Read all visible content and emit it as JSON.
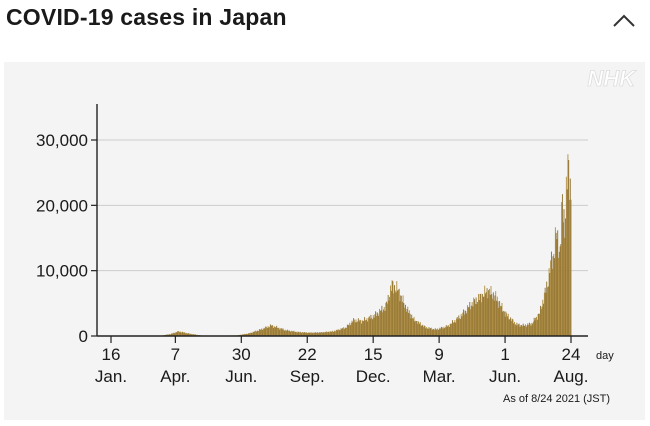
{
  "header": {
    "title": "COVID-19 cases in Japan",
    "collapse_icon": "chevron-up-icon"
  },
  "colors": {
    "bar": "#b08d3e",
    "bar_dark": "#8c6f2e",
    "grid": "#cccccc",
    "axis": "#222222",
    "panel": "#f4f4f4",
    "watermark": "#ffffff"
  },
  "watermark": "NHK",
  "chart_data": {
    "type": "bar",
    "title": "COVID-19 cases in Japan",
    "xlabel": "day",
    "ylabel": "",
    "ylim": [
      0,
      35000
    ],
    "yticks": [
      0,
      10000,
      20000,
      30000
    ],
    "ytick_labels": [
      "0",
      "10,000",
      "20,000",
      "30,000"
    ],
    "x_unit_label": "day",
    "date_start": "2020-01-16",
    "date_end": "2021-08-24",
    "xticks": [
      {
        "date": "2020-01-16",
        "day": "16",
        "month": "Jan."
      },
      {
        "date": "2020-04-07",
        "day": "7",
        "month": "Apr."
      },
      {
        "date": "2020-06-30",
        "day": "30",
        "month": "Jun."
      },
      {
        "date": "2020-09-22",
        "day": "22",
        "month": "Sep."
      },
      {
        "date": "2020-12-15",
        "day": "15",
        "month": "Dec."
      },
      {
        "date": "2021-03-09",
        "day": "9",
        "month": "Mar."
      },
      {
        "date": "2021-06-01",
        "day": "1",
        "month": "Jun."
      },
      {
        "date": "2021-08-24",
        "day": "24",
        "month": "Aug."
      }
    ],
    "series": [
      {
        "points": [
          [
            "2020-01-16",
            0
          ],
          [
            "2020-02-20",
            20
          ],
          [
            "2020-03-20",
            60
          ],
          [
            "2020-04-01",
            300
          ],
          [
            "2020-04-11",
            700
          ],
          [
            "2020-04-25",
            350
          ],
          [
            "2020-05-10",
            80
          ],
          [
            "2020-06-01",
            40
          ],
          [
            "2020-06-25",
            100
          ],
          [
            "2020-07-10",
            400
          ],
          [
            "2020-07-25",
            1000
          ],
          [
            "2020-08-07",
            1600
          ],
          [
            "2020-08-25",
            900
          ],
          [
            "2020-09-10",
            600
          ],
          [
            "2020-09-25",
            500
          ],
          [
            "2020-10-10",
            550
          ],
          [
            "2020-10-25",
            700
          ],
          [
            "2020-11-10",
            1300
          ],
          [
            "2020-11-20",
            2400
          ],
          [
            "2020-12-01",
            2300
          ],
          [
            "2020-12-15",
            3000
          ],
          [
            "2020-12-31",
            4500
          ],
          [
            "2021-01-08",
            7800
          ],
          [
            "2021-01-16",
            7000
          ],
          [
            "2021-01-25",
            4500
          ],
          [
            "2021-02-05",
            2500
          ],
          [
            "2021-02-20",
            1300
          ],
          [
            "2021-03-05",
            1000
          ],
          [
            "2021-03-20",
            1500
          ],
          [
            "2021-04-05",
            3000
          ],
          [
            "2021-04-20",
            5000
          ],
          [
            "2021-05-01",
            6000
          ],
          [
            "2021-05-10",
            7000
          ],
          [
            "2021-05-20",
            6000
          ],
          [
            "2021-06-01",
            3500
          ],
          [
            "2021-06-15",
            1800
          ],
          [
            "2021-06-25",
            1600
          ],
          [
            "2021-07-05",
            1900
          ],
          [
            "2021-07-15",
            3500
          ],
          [
            "2021-07-25",
            8000
          ],
          [
            "2021-07-29",
            11000
          ],
          [
            "2021-08-01",
            12000
          ],
          [
            "2021-08-05",
            15500
          ],
          [
            "2021-08-10",
            13000
          ],
          [
            "2021-08-13",
            20500
          ],
          [
            "2021-08-16",
            17000
          ],
          [
            "2021-08-20",
            25800
          ],
          [
            "2021-08-22",
            25000
          ],
          [
            "2021-08-24",
            21500
          ]
        ]
      }
    ],
    "annotation": "As of 8/24 2021 (JST)"
  }
}
